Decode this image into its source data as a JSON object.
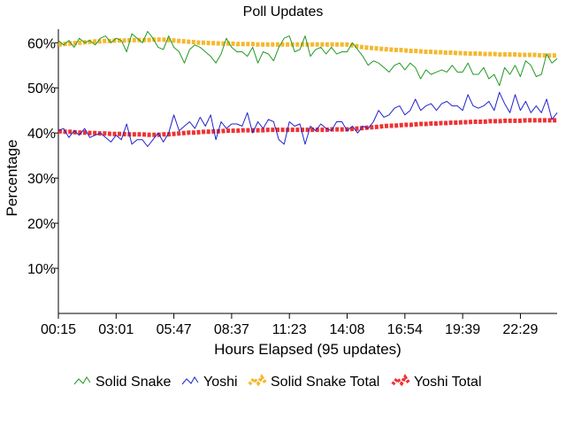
{
  "chart_data": {
    "type": "line",
    "title": "Poll Updates",
    "xlabel": "Hours Elapsed (95 updates)",
    "ylabel": "Percentage",
    "ylim": [
      0,
      63
    ],
    "y_ticks": [
      10,
      20,
      30,
      40,
      50,
      60
    ],
    "y_tick_labels": [
      "10%",
      "20%",
      "30%",
      "40%",
      "50%",
      "60%"
    ],
    "x_tick_labels": [
      "00:15",
      "03:01",
      "05:47",
      "08:37",
      "11:23",
      "14:08",
      "16:54",
      "19:39",
      "22:29"
    ],
    "x_tick_index": [
      0,
      11,
      22,
      33,
      44,
      55,
      66,
      77,
      88
    ],
    "x_count": 96,
    "grid": false,
    "legend_position": "bottom",
    "series": [
      {
        "name": "Solid Snake",
        "color": "#229922",
        "style": "thin",
        "values": [
          60.5,
          59.5,
          60.5,
          59.0,
          61.0,
          60.0,
          60.5,
          59.5,
          61.0,
          61.5,
          60.0,
          61.0,
          60.5,
          58.0,
          62.0,
          61.0,
          60.0,
          62.5,
          61.0,
          59.0,
          58.5,
          61.5,
          59.0,
          58.0,
          55.5,
          58.5,
          59.5,
          59.0,
          58.0,
          57.0,
          55.5,
          57.5,
          61.0,
          59.0,
          58.0,
          58.0,
          57.0,
          59.0,
          55.5,
          58.0,
          57.5,
          56.0,
          59.0,
          61.0,
          61.5,
          58.0,
          58.5,
          61.5,
          57.0,
          58.5,
          59.0,
          57.5,
          59.0,
          57.5,
          58.0,
          58.0,
          60.0,
          58.5,
          57.0,
          55.0,
          56.0,
          55.5,
          54.5,
          53.5,
          55.0,
          55.5,
          54.0,
          55.5,
          54.5,
          52.0,
          54.0,
          53.0,
          53.5,
          54.0,
          53.5,
          55.0,
          53.5,
          53.5,
          55.5,
          53.0,
          53.0,
          54.5,
          52.0,
          53.0,
          50.5,
          54.5,
          53.0,
          55.0,
          52.5,
          56.0,
          55.0,
          52.5,
          53.0,
          57.5,
          55.5,
          56.5
        ]
      },
      {
        "name": "Yoshi",
        "color": "#2222cc",
        "style": "thin",
        "values": [
          40.5,
          41.0,
          39.0,
          40.5,
          39.5,
          41.0,
          39.0,
          39.5,
          40.0,
          39.0,
          38.0,
          39.5,
          38.5,
          42.0,
          37.5,
          38.5,
          38.5,
          37.0,
          38.5,
          40.0,
          38.0,
          40.0,
          44.0,
          40.5,
          41.5,
          42.5,
          41.0,
          43.5,
          41.5,
          44.0,
          38.5,
          42.5,
          41.0,
          42.0,
          42.0,
          41.5,
          44.5,
          40.0,
          42.5,
          41.0,
          43.0,
          42.5,
          38.5,
          37.5,
          42.5,
          41.5,
          42.0,
          37.5,
          41.5,
          40.5,
          42.0,
          41.0,
          40.5,
          42.5,
          42.5,
          40.5,
          41.5,
          40.0,
          41.5,
          41.0,
          42.5,
          45.0,
          43.5,
          44.0,
          45.5,
          46.0,
          44.0,
          45.0,
          47.5,
          45.0,
          46.0,
          46.5,
          45.0,
          46.5,
          47.0,
          46.0,
          46.0,
          45.0,
          48.5,
          46.0,
          45.5,
          46.0,
          47.0,
          45.0,
          49.0,
          46.5,
          44.5,
          48.5,
          45.0,
          47.0,
          44.5,
          46.0,
          44.5,
          47.5,
          43.0,
          44.5
        ]
      },
      {
        "name": "Solid Snake Total",
        "color": "#f5b82e",
        "style": "thick",
        "values": [
          59.6,
          59.7,
          59.8,
          59.9,
          60.0,
          60.1,
          60.2,
          60.3,
          60.3,
          60.4,
          60.4,
          60.5,
          60.5,
          60.5,
          60.6,
          60.6,
          60.6,
          60.6,
          60.7,
          60.7,
          60.7,
          60.6,
          60.5,
          60.4,
          60.3,
          60.2,
          60.1,
          60.0,
          60.0,
          59.9,
          59.9,
          59.8,
          59.8,
          59.8,
          59.7,
          59.7,
          59.7,
          59.7,
          59.6,
          59.6,
          59.6,
          59.6,
          59.6,
          59.6,
          59.6,
          59.6,
          59.6,
          59.6,
          59.6,
          59.6,
          59.6,
          59.6,
          59.6,
          59.6,
          59.6,
          59.6,
          59.4,
          59.2,
          59.0,
          58.9,
          58.8,
          58.7,
          58.6,
          58.5,
          58.4,
          58.4,
          58.3,
          58.2,
          58.2,
          58.1,
          58.0,
          58.0,
          57.9,
          57.9,
          57.8,
          57.8,
          57.7,
          57.7,
          57.6,
          57.6,
          57.6,
          57.5,
          57.5,
          57.5,
          57.4,
          57.4,
          57.4,
          57.4,
          57.3,
          57.3,
          57.3,
          57.3,
          57.2,
          57.2,
          57.2,
          57.2
        ]
      },
      {
        "name": "Yoshi Total",
        "color": "#ee3333",
        "style": "thick",
        "values": [
          40.4,
          40.3,
          40.3,
          40.2,
          40.1,
          40.1,
          40.0,
          40.0,
          39.9,
          39.9,
          39.8,
          39.8,
          39.8,
          39.7,
          39.7,
          39.7,
          39.7,
          39.6,
          39.6,
          39.6,
          39.7,
          39.7,
          39.8,
          39.9,
          40.0,
          40.1,
          40.1,
          40.2,
          40.3,
          40.3,
          40.4,
          40.4,
          40.5,
          40.5,
          40.5,
          40.6,
          40.6,
          40.6,
          40.6,
          40.6,
          40.7,
          40.7,
          40.7,
          40.7,
          40.7,
          40.7,
          40.7,
          40.7,
          40.7,
          40.7,
          40.7,
          40.7,
          40.8,
          40.8,
          40.8,
          40.8,
          40.9,
          41.0,
          41.1,
          41.2,
          41.3,
          41.4,
          41.5,
          41.6,
          41.6,
          41.7,
          41.8,
          41.8,
          41.9,
          42.0,
          42.0,
          42.1,
          42.1,
          42.2,
          42.2,
          42.3,
          42.3,
          42.4,
          42.4,
          42.5,
          42.5,
          42.5,
          42.6,
          42.6,
          42.6,
          42.7,
          42.7,
          42.7,
          42.7,
          42.8,
          42.8,
          42.8,
          42.8,
          42.8,
          42.8,
          42.8
        ]
      }
    ]
  }
}
